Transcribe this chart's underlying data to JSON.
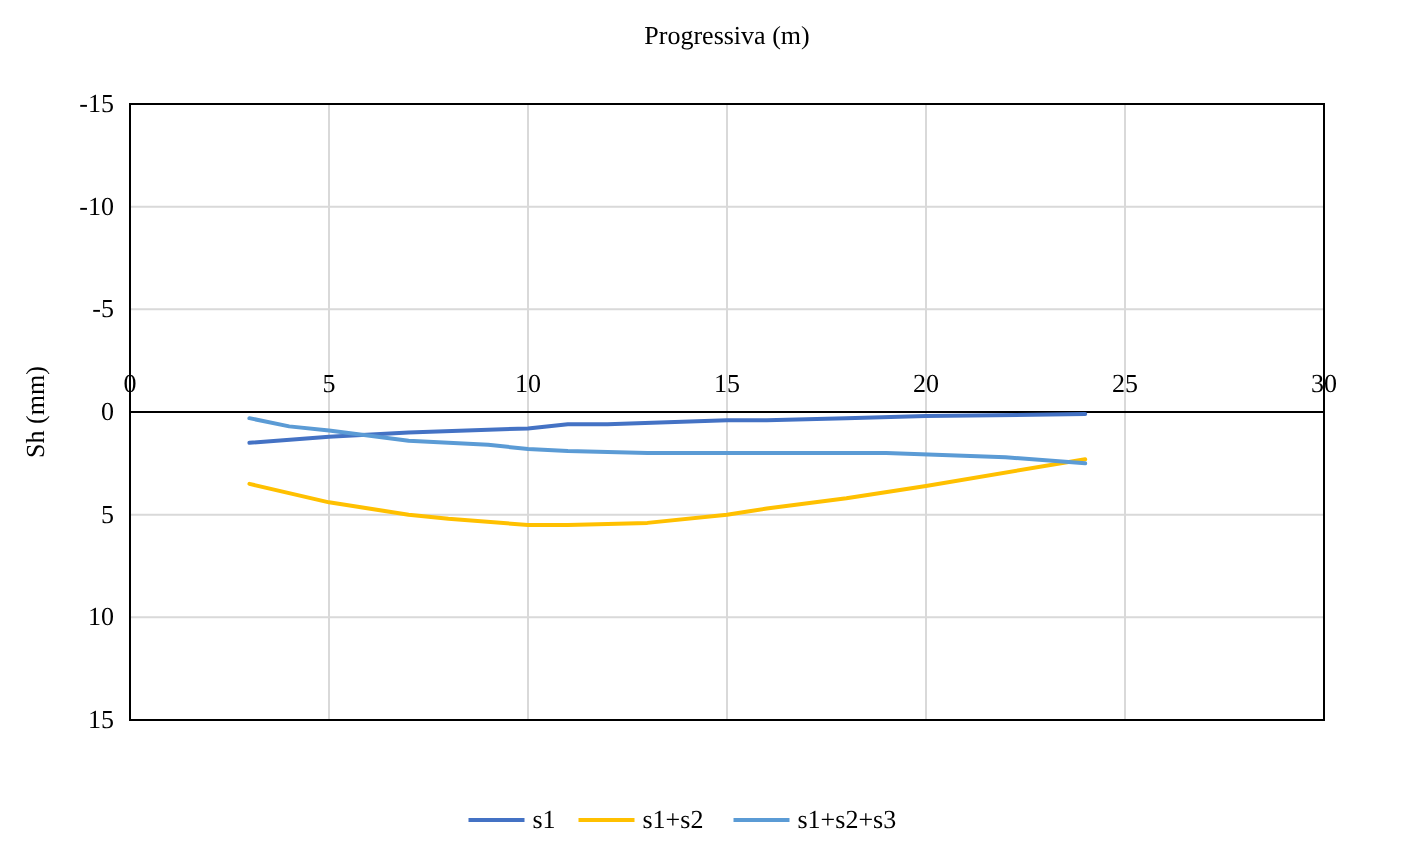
{
  "chart_data": {
    "type": "line",
    "xlabel": "Progressiva (m)",
    "ylabel": "Sh (mm)",
    "xlim": [
      0,
      30
    ],
    "xticks": [
      0,
      5,
      10,
      15,
      20,
      25,
      30
    ],
    "ylim": [
      15,
      -15
    ],
    "yticks": [
      -15,
      -10,
      -5,
      0,
      5,
      10,
      15
    ],
    "grid": true,
    "legend": "bottom",
    "series": [
      {
        "name": "s1",
        "color": "#4472c4",
        "x": [
          3,
          5,
          7,
          10,
          11,
          12,
          15,
          16,
          18,
          20,
          24
        ],
        "values": [
          1.5,
          1.2,
          1.0,
          0.8,
          0.6,
          0.6,
          0.4,
          0.4,
          0.3,
          0.2,
          0.1
        ]
      },
      {
        "name": "s1+s2",
        "color": "#ffc000",
        "x": [
          3,
          5,
          7,
          8,
          10,
          11,
          13,
          15,
          16,
          18,
          20,
          24
        ],
        "values": [
          3.5,
          4.4,
          5.0,
          5.2,
          5.5,
          5.5,
          5.4,
          5.0,
          4.7,
          4.2,
          3.6,
          2.3
        ]
      },
      {
        "name": "s1+s2+s3",
        "color": "#5b9bd5",
        "x": [
          3,
          4,
          5,
          7,
          9,
          10,
          11,
          13,
          15,
          17,
          19,
          22,
          24
        ],
        "values": [
          0.3,
          0.7,
          0.9,
          1.4,
          1.6,
          1.8,
          1.9,
          2.0,
          2.0,
          2.0,
          2.0,
          2.2,
          2.5
        ]
      }
    ]
  }
}
